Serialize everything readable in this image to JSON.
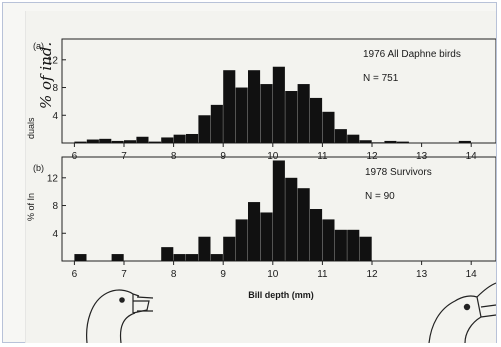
{
  "chart_data": [
    {
      "type": "bar",
      "panel_label": "(a)",
      "title": "1976 All Daphne birds",
      "annotation": "N = 751",
      "xlim": [
        5.75,
        14.5
      ],
      "ylim": [
        0,
        15
      ],
      "bin_width": 0.25,
      "x_ticks": [
        6,
        7,
        8,
        9,
        10,
        11,
        12,
        13,
        14
      ],
      "y_ticks": [
        4,
        8,
        12
      ],
      "x": [
        6.0,
        6.25,
        6.5,
        6.75,
        7.0,
        7.25,
        7.5,
        7.75,
        8.0,
        8.25,
        8.5,
        8.75,
        9.0,
        9.25,
        9.5,
        9.75,
        10.0,
        10.25,
        10.5,
        10.75,
        11.0,
        11.25,
        11.5,
        11.75,
        12.0,
        12.25,
        12.5,
        13.75
      ],
      "values": [
        0.2,
        0.5,
        0.6,
        0.3,
        0.4,
        0.9,
        0.2,
        0.8,
        1.2,
        1.3,
        4.0,
        5.5,
        10.5,
        8.0,
        10.5,
        8.5,
        11.0,
        7.5,
        8.5,
        6.5,
        4.5,
        2.0,
        1.2,
        0.4,
        0.1,
        0.3,
        0.2,
        0.3
      ]
    },
    {
      "type": "bar",
      "panel_label": "(b)",
      "title": "1978 Survivors",
      "annotation": "N = 90",
      "xlim": [
        5.75,
        14.5
      ],
      "ylim": [
        0,
        15
      ],
      "bin_width": 0.25,
      "x_ticks": [
        6,
        7,
        8,
        9,
        10,
        11,
        12,
        13,
        14
      ],
      "y_ticks": [
        4,
        8,
        12
      ],
      "x": [
        6.0,
        6.75,
        7.75,
        8.0,
        8.25,
        8.5,
        8.75,
        9.0,
        9.25,
        9.5,
        9.75,
        10.0,
        10.25,
        10.5,
        10.75,
        11.0,
        11.25,
        11.5,
        11.75
      ],
      "values": [
        1.0,
        1.0,
        2.0,
        1.0,
        1.0,
        3.5,
        1.0,
        3.5,
        6.0,
        8.5,
        7.0,
        14.5,
        12.0,
        10.5,
        7.5,
        6.0,
        4.5,
        4.5,
        3.5
      ]
    }
  ],
  "x_axis_label": "Bill depth (mm)",
  "y_axis_label": "% of In",
  "y_axis_label_partial": "duals",
  "handwritten_note": "% of ind."
}
